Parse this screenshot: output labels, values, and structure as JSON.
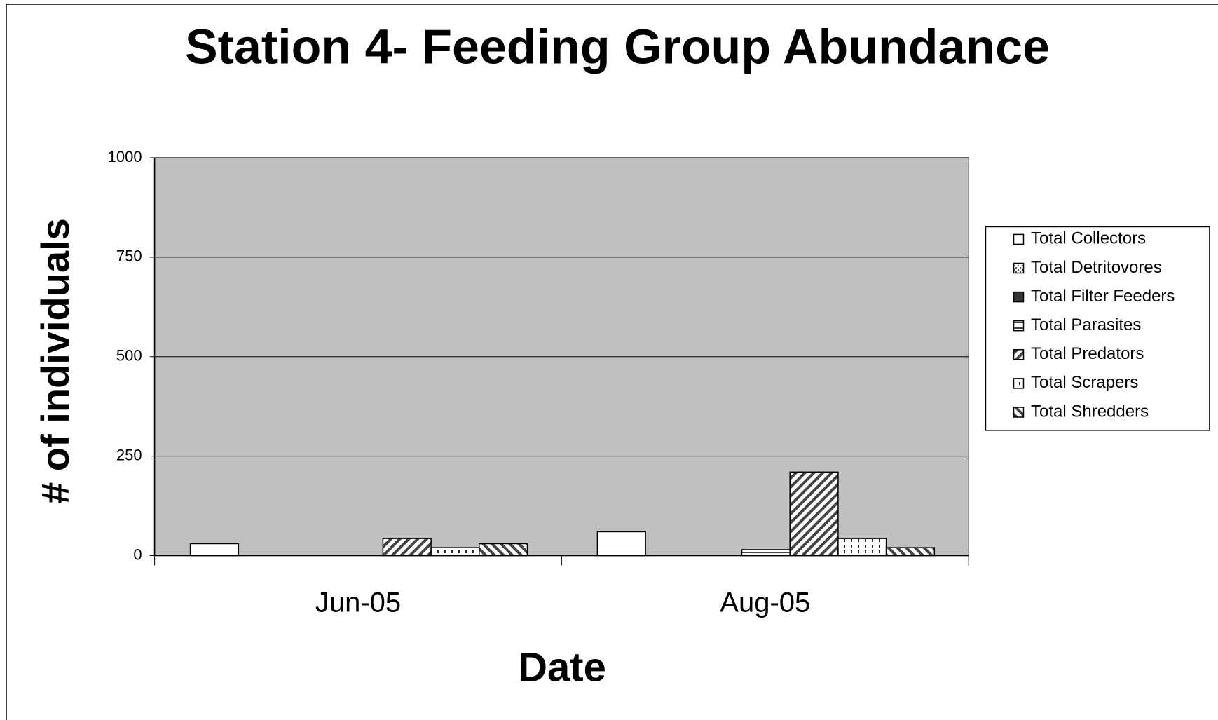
{
  "chart_data": {
    "type": "bar",
    "title": "Station 4- Feeding Group Abundance",
    "xlabel": "Date",
    "ylabel": "# of individuals",
    "categories": [
      "Jun-05",
      "Aug-05"
    ],
    "series": [
      {
        "name": "Total Collectors",
        "color": "#ffffff",
        "values": [
          30,
          60
        ]
      },
      {
        "name": "Total Detritovores",
        "color": "#ffffff",
        "values": [
          0,
          0
        ]
      },
      {
        "name": "Total Filter Feeders",
        "color": "#333333",
        "values": [
          0,
          0
        ]
      },
      {
        "name": "Total Parasites",
        "color": "#ffffff",
        "values": [
          0,
          15
        ]
      },
      {
        "name": "Total Predators",
        "color": "#ffffff",
        "values": [
          43,
          210
        ]
      },
      {
        "name": "Total Scrapers",
        "color": "#ffffff",
        "values": [
          20,
          43
        ]
      },
      {
        "name": "Total Shredders",
        "color": "#ffffff",
        "values": [
          30,
          20
        ]
      }
    ],
    "ylim": [
      0,
      1000
    ],
    "yticks": [
      0,
      250,
      500,
      750,
      1000
    ],
    "grid": true,
    "legend": "right"
  }
}
